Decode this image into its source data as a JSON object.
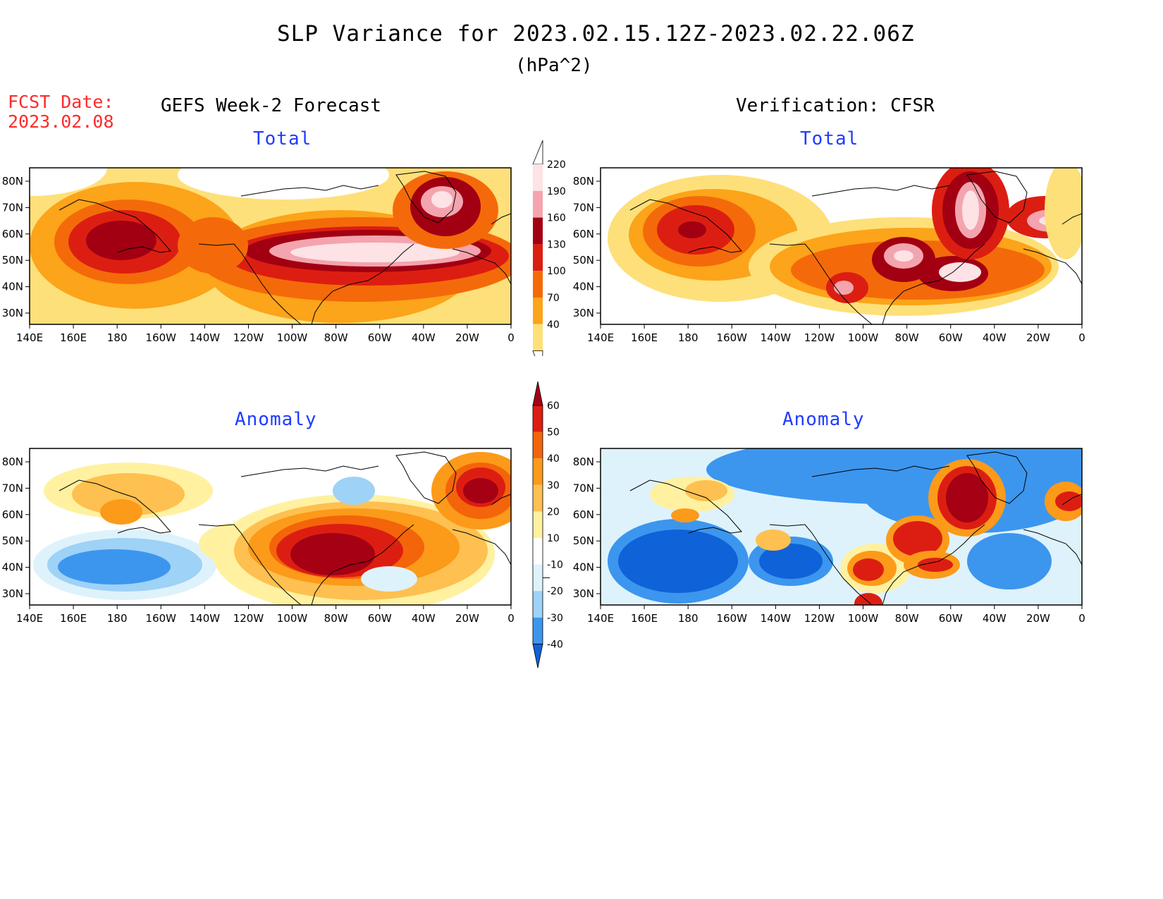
{
  "header": {
    "title": "SLP Variance for 2023.02.15.12Z-2023.02.22.06Z",
    "units": "(hPa^2)"
  },
  "forecast_date": {
    "label": "FCST Date:",
    "value": "2023.02.08"
  },
  "columns": {
    "left": "GEFS Week-2 Forecast",
    "right": "Verification: CFSR"
  },
  "panels": {
    "top_left": "Total",
    "top_right": "Total",
    "bottom_left": "Anomaly",
    "bottom_right": "Anomaly"
  },
  "axes": {
    "lat_ticks": [
      "80N",
      "70N",
      "60N",
      "50N",
      "40N",
      "30N"
    ],
    "lon_ticks": [
      "140E",
      "160E",
      "180",
      "160W",
      "140W",
      "120W",
      "100W",
      "80W",
      "60W",
      "40W",
      "20W",
      "0"
    ]
  },
  "colorbars": {
    "total": {
      "ticks": [
        "220",
        "190",
        "160",
        "130",
        "100",
        "70",
        "40"
      ],
      "colors": [
        "#fde2e6",
        "#f4a4ae",
        "#a20012",
        "#dc1e12",
        "#f46a0a",
        "#fca41a",
        "#fee07a"
      ],
      "top_color": "#ffffff"
    },
    "anomaly": {
      "ticks": [
        "60",
        "50",
        "40",
        "30",
        "20",
        "10",
        "-10",
        "-20",
        "-30",
        "-40"
      ],
      "colors": [
        "#a50014",
        "#dc1e12",
        "#f4640a",
        "#fc9a1a",
        "#fec050",
        "#fff1a0",
        "#ffffff",
        "#def2fc",
        "#9ed2f6",
        "#3c96ee",
        "#1062d8"
      ]
    }
  }
}
